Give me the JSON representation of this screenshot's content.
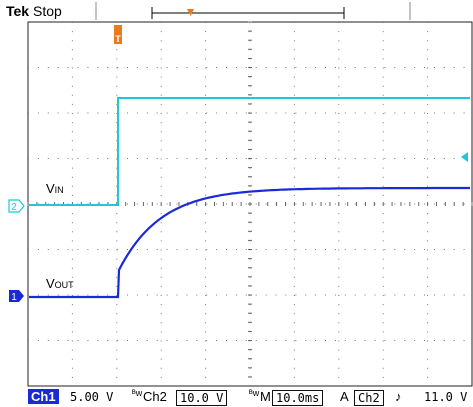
{
  "header": {
    "brand": "Tek",
    "run_state": "Stop"
  },
  "traces": {
    "vin_label": "V",
    "vin_sub": "IN",
    "vout_label": "V",
    "vout_sub": "OUT",
    "ch1_marker": "1",
    "ch2_marker": "2",
    "trigger_marker": "T",
    "vin_color": "#1ec8d8",
    "vout_color": "#1a2bd6",
    "trigger_color": "#e87b1e"
  },
  "footer": {
    "ch1_label": "Ch1",
    "ch1_scale": "5.00 V",
    "ch2_coupling": "ᴮw",
    "ch2_label": "Ch2",
    "ch2_scale": "10.0 V",
    "time_coupling": "ᴮw",
    "time_label": "M",
    "time_scale": "10.0ms",
    "trig_mode": "A",
    "trig_source": "Ch2",
    "trig_slope": "♪",
    "trig_level": "11.0 V"
  }
}
